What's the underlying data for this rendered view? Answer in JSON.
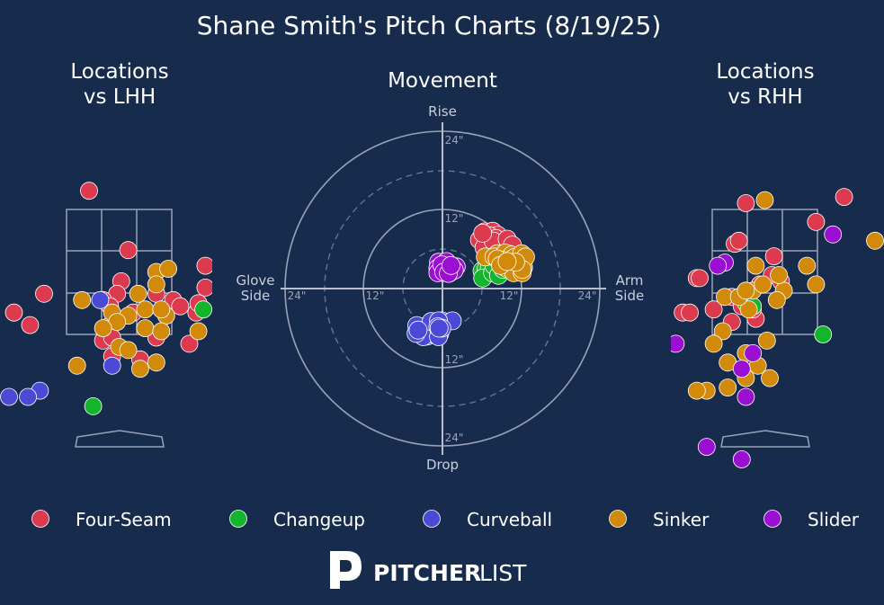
{
  "title": "Shane Smith's Pitch Charts (8/19/25)",
  "panels": {
    "lhh_title": [
      "Locations",
      "vs LHH"
    ],
    "movement_title": "Movement",
    "rhh_title": [
      "Locations",
      "vs RHH"
    ]
  },
  "movement_axes": {
    "top": "Rise",
    "bottom": "Drop",
    "left": [
      "Glove",
      "Side"
    ],
    "right": [
      "Arm",
      "Side"
    ],
    "ring_labels": [
      "24\"",
      "12\"",
      "12\"",
      "24\"",
      "24\"",
      "12\"",
      "12\"",
      "24\""
    ]
  },
  "pitch_types": [
    {
      "name": "Four-Seam",
      "color": "#dc3a4e"
    },
    {
      "name": "Changeup",
      "color": "#12b52c"
    },
    {
      "name": "Curveball",
      "color": "#4a4ad6"
    },
    {
      "name": "Sinker",
      "color": "#d18a0a"
    },
    {
      "name": "Slider",
      "color": "#9a0fd1"
    }
  ],
  "brand": {
    "bold": "PITCHER",
    "light": "LIST"
  },
  "chart_data": [
    {
      "type": "scatter",
      "title": "Locations vs LHH",
      "series": [
        {
          "name": "Four-Seam",
          "points": [
            [
              2.07,
              4.3
            ],
            [
              -0.43,
              3.8
            ],
            [
              0.13,
              2.85
            ],
            [
              1.23,
              2.6
            ],
            [
              0.03,
              2.35
            ],
            [
              1.23,
              2.25
            ],
            [
              -1.07,
              2.15
            ],
            [
              -0.03,
              2.15
            ],
            [
              0.53,
              2.15
            ],
            [
              0.77,
              2.05
            ],
            [
              -0.23,
              2.05
            ],
            [
              -0.13,
              1.95
            ],
            [
              1.1,
              1.85
            ],
            [
              1.13,
              2.0
            ],
            [
              0.87,
              1.95
            ],
            [
              -1.5,
              1.85
            ],
            [
              -0.13,
              1.65
            ],
            [
              -1.27,
              1.65
            ],
            [
              1.5,
              1.4
            ],
            [
              -0.1,
              1.15
            ],
            [
              0.53,
              1.45
            ],
            [
              1.0,
              1.35
            ],
            [
              -0.23,
              1.4
            ],
            [
              1.7,
              2.55
            ],
            [
              0.2,
              1.85
            ],
            [
              -0.1,
              1.45
            ],
            [
              1.8,
              2.9
            ],
            [
              0.3,
              1.1
            ]
          ]
        },
        {
          "name": "Changeup",
          "points": [
            [
              1.8,
              3.7
            ],
            [
              1.57,
              3.3
            ],
            [
              1.67,
              2.65
            ],
            [
              1.73,
              1.9
            ],
            [
              -0.37,
              0.35
            ],
            [
              -2.73,
              -0.9
            ],
            [
              1.2,
              1.9
            ]
          ]
        },
        {
          "name": "Curveball",
          "points": [
            [
              1.5,
              3.65
            ],
            [
              1.5,
              2.1
            ],
            [
              -0.27,
              2.05
            ],
            [
              -0.1,
              1.0
            ],
            [
              -1.13,
              0.6
            ],
            [
              -1.3,
              0.5
            ],
            [
              -1.57,
              0.5
            ],
            [
              -3.0,
              0.2
            ],
            [
              -3.0,
              0.1
            ],
            [
              -2.73,
              -0.2
            ]
          ]
        },
        {
          "name": "Sinker",
          "points": [
            [
              0.53,
              2.5
            ],
            [
              0.7,
              2.55
            ],
            [
              0.53,
              2.3
            ],
            [
              0.27,
              2.15
            ],
            [
              -0.53,
              2.05
            ],
            [
              0.37,
              1.9
            ],
            [
              -0.1,
              1.85
            ],
            [
              0.13,
              1.8
            ],
            [
              0.67,
              1.8
            ],
            [
              -0.03,
              1.7
            ],
            [
              0.37,
              1.6
            ],
            [
              0.6,
              1.55
            ],
            [
              1.13,
              1.55
            ],
            [
              0.0,
              1.3
            ],
            [
              0.13,
              1.25
            ],
            [
              -0.6,
              1.0
            ],
            [
              0.3,
              0.95
            ],
            [
              0.53,
              1.05
            ],
            [
              -0.23,
              1.6
            ],
            [
              0.6,
              1.9
            ]
          ]
        },
        {
          "name": "Slider",
          "points": []
        }
      ]
    },
    {
      "type": "scatter",
      "title": "Movement",
      "x_unit": "inches (glove side negative, arm side positive)",
      "y_unit": "inches (rise positive, drop negative)",
      "rings": [
        12,
        24
      ],
      "series": [
        {
          "name": "Four-Seam",
          "points": [
            [
              7.1,
              8.2
            ],
            [
              6.9,
              7.8
            ],
            [
              6.4,
              8.6
            ],
            [
              7.6,
              8.7
            ],
            [
              5.9,
              7.5
            ],
            [
              6.2,
              7.1
            ],
            [
              6.5,
              6.6
            ],
            [
              8.3,
              6.1
            ],
            [
              7.5,
              5.3
            ],
            [
              9.3,
              5.1
            ],
            [
              8.8,
              5.9
            ],
            [
              6.7,
              6.9
            ],
            [
              5.6,
              7.4
            ],
            [
              8.4,
              8.1
            ],
            [
              7.1,
              8.0
            ],
            [
              6.3,
              6.2
            ],
            [
              8.1,
              7.6
            ],
            [
              7.7,
              7.2
            ],
            [
              6.1,
              8.4
            ],
            [
              9.8,
              7.5
            ],
            [
              10.6,
              6.6
            ],
            [
              10.2,
              5.2
            ]
          ]
        },
        {
          "name": "Changeup",
          "points": [
            [
              6.0,
              2.7
            ],
            [
              6.6,
              2.9
            ],
            [
              7.1,
              3.2
            ],
            [
              6.1,
              1.6
            ],
            [
              7.6,
              2.4
            ],
            [
              7.8,
              3.5
            ],
            [
              8.5,
              2.0
            ],
            [
              9.2,
              2.9
            ],
            [
              9.7,
              3.6
            ],
            [
              10.4,
              3.1
            ],
            [
              11.2,
              3.1
            ]
          ]
        },
        {
          "name": "Sinker",
          "points": [
            [
              6.5,
              4.8
            ],
            [
              8.3,
              5.3
            ],
            [
              7.8,
              4.8
            ],
            [
              9.5,
              5.4
            ],
            [
              10.5,
              5.1
            ],
            [
              9.1,
              4.3
            ],
            [
              10.5,
              3.9
            ],
            [
              11.0,
              3.6
            ],
            [
              12.3,
              4.2
            ],
            [
              10.6,
              3.2
            ],
            [
              9.7,
              3.1
            ],
            [
              11.5,
              4.6
            ],
            [
              10.9,
              4.7
            ],
            [
              10.8,
              2.4
            ],
            [
              12.1,
              2.4
            ],
            [
              12.0,
              5.3
            ],
            [
              8.3,
              4.5
            ],
            [
              8.8,
              3.5
            ],
            [
              12.3,
              3.2
            ],
            [
              12.6,
              4.8
            ],
            [
              12.1,
              2.9
            ],
            [
              11.1,
              4.0
            ],
            [
              9.8,
              4.1
            ]
          ]
        },
        {
          "name": "Curveball",
          "points": [
            [
              -2.7,
              -6.4
            ],
            [
              -2.3,
              -7.2
            ],
            [
              -1.5,
              -6.8
            ],
            [
              -0.4,
              -6.8
            ],
            [
              0.2,
              -5.1
            ],
            [
              -0.3,
              -5.9
            ],
            [
              -0.1,
              -4.9
            ],
            [
              -1.0,
              -5.6
            ],
            [
              -2.3,
              -5.6
            ],
            [
              -1.1,
              -7.0
            ],
            [
              -2.9,
              -7.3
            ],
            [
              -3.9,
              -5.6
            ],
            [
              -4.0,
              -6.8
            ],
            [
              -0.6,
              -7.3
            ],
            [
              1.5,
              -4.9
            ],
            [
              -1.7,
              -5.0
            ],
            [
              -0.6,
              -4.9
            ],
            [
              -0.1,
              -6.0
            ],
            [
              -0.7,
              -5.8
            ],
            [
              -0.5,
              -6.0
            ],
            [
              -3.7,
              -6.3
            ]
          ]
        },
        {
          "name": "Slider",
          "points": [
            [
              -0.6,
              4.0
            ],
            [
              0.6,
              4.1
            ],
            [
              -0.7,
              3.1
            ],
            [
              0.2,
              3.3
            ],
            [
              -0.7,
              2.4
            ],
            [
              2.1,
              3.3
            ],
            [
              1.5,
              3.0
            ],
            [
              0.3,
              2.8
            ],
            [
              1.1,
              2.4
            ],
            [
              -0.1,
              3.6
            ],
            [
              1.8,
              2.8
            ],
            [
              0.2,
              2.5
            ],
            [
              0.9,
              2.3
            ],
            [
              1.3,
              3.5
            ]
          ]
        }
      ]
    },
    {
      "type": "scatter",
      "title": "Locations vs RHH",
      "series": [
        {
          "name": "Four-Seam",
          "points": [
            [
              -0.27,
              3.6
            ],
            [
              1.13,
              3.7
            ],
            [
              0.73,
              3.3
            ],
            [
              -0.97,
              2.4
            ],
            [
              -1.17,
              1.85
            ],
            [
              -1.5,
              1.65
            ],
            [
              -0.47,
              2.1
            ],
            [
              -0.07,
              2.3
            ],
            [
              0.1,
              2.45
            ],
            [
              0.13,
              2.75
            ],
            [
              0.23,
              2.35
            ],
            [
              -0.47,
              1.7
            ],
            [
              -0.73,
              1.9
            ],
            [
              -1.07,
              1.85
            ],
            [
              -0.43,
              2.95
            ],
            [
              -0.13,
              1.75
            ],
            [
              -0.37,
              3.0
            ],
            [
              -0.93,
              2.4
            ],
            [
              -0.17,
              1.9
            ],
            [
              -0.33,
              1.95
            ],
            [
              -2.1,
              0.5
            ]
          ]
        },
        {
          "name": "Changeup",
          "points": [
            [
              -0.27,
              2.0
            ],
            [
              0.83,
              1.5
            ],
            [
              -0.17,
              1.95
            ]
          ]
        },
        {
          "name": "Curveball",
          "points": [
            [
              1.9,
              1.8
            ]
          ]
        },
        {
          "name": "Sinker",
          "points": [
            [
              0.0,
              3.65
            ],
            [
              -0.13,
              2.6
            ],
            [
              -0.17,
              2.2
            ],
            [
              0.27,
              2.2
            ],
            [
              0.2,
              2.45
            ],
            [
              -0.57,
              2.1
            ],
            [
              -0.23,
              1.9
            ],
            [
              -0.03,
              2.3
            ],
            [
              0.73,
              2.3
            ],
            [
              0.6,
              2.6
            ],
            [
              -0.6,
              1.55
            ],
            [
              -0.53,
              1.05
            ],
            [
              -0.1,
              1.0
            ],
            [
              0.07,
              0.8
            ],
            [
              -0.27,
              0.8
            ],
            [
              -0.83,
              0.6
            ],
            [
              -0.97,
              0.6
            ],
            [
              -0.53,
              0.65
            ],
            [
              -0.73,
              1.35
            ],
            [
              -0.27,
              1.2
            ],
            [
              0.03,
              1.4
            ],
            [
              0.17,
              2.05
            ],
            [
              1.57,
              3.0
            ],
            [
              -0.37,
              2.1
            ],
            [
              -0.27,
              2.2
            ]
          ]
        },
        {
          "name": "Slider",
          "points": [
            [
              0.97,
              3.1
            ],
            [
              -0.57,
              2.65
            ],
            [
              -1.27,
              1.35
            ],
            [
              -1.9,
              0.6
            ],
            [
              -0.83,
              -0.3
            ],
            [
              -0.33,
              -0.5
            ],
            [
              -0.27,
              0.5
            ],
            [
              -0.17,
              1.2
            ],
            [
              -0.33,
              0.95
            ],
            [
              -0.67,
              2.6
            ]
          ]
        }
      ]
    }
  ]
}
